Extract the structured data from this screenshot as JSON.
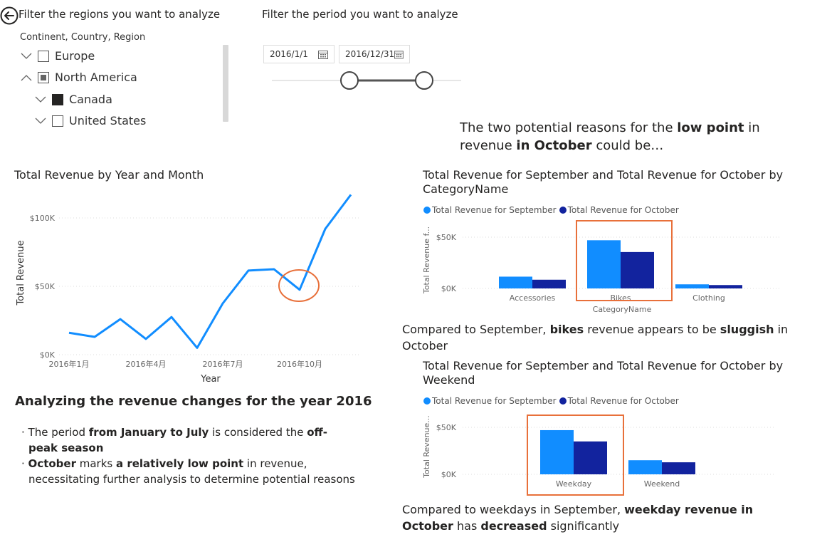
{
  "filters": {
    "region_heading": "Filter the regions you want to analyze",
    "period_heading": "Filter the period you want to analyze",
    "tree_title": "Continent, Country, Region",
    "tree_items": [
      {
        "label": "Europe",
        "state": "unchecked",
        "expanded": false
      },
      {
        "label": "North America",
        "state": "partial",
        "expanded": true
      },
      {
        "label": "Canada",
        "state": "checked",
        "expanded": false
      },
      {
        "label": "United States",
        "state": "unchecked",
        "expanded": false
      }
    ],
    "start_date": "2016/1/1",
    "end_date": "2016/12/31"
  },
  "insight": {
    "reasons_intro_pre": "The two potential reasons for the ",
    "reasons_intro_bold1": "low point",
    "reasons_intro_mid": " in revenue ",
    "reasons_intro_bold2": "in October",
    "reasons_intro_post": " could be…"
  },
  "line_chart": {
    "title": "Total Revenue by Year and Month",
    "xlabel": "Year",
    "ylabel": "Total Revenue"
  },
  "analysis": {
    "heading": "Analyzing the revenue changes for the year 2016",
    "bullet1_pre": "The period ",
    "bullet1_bold": "from January to July",
    "bullet1_mid": " is considered the ",
    "bullet1_bold2": "off-peak season",
    "bullet2_bold": "October",
    "bullet2_mid": " marks ",
    "bullet2_bold2": "a relatively low point",
    "bullet2_post": " in revenue, necessitating further analysis to determine potential reasons"
  },
  "bar_chart_category": {
    "title": "Total Revenue for September and Total Revenue for October by CategoryName",
    "xlabel": "CategoryName",
    "ylabel": "Total Revenue f...",
    "note_pre": "Compared to September, ",
    "note_bold1": "bikes",
    "note_mid": " revenue appears to be ",
    "note_bold2": "sluggish",
    "note_post": " in October"
  },
  "bar_chart_weekend": {
    "title": "Total Revenue for September and Total Revenue for October by Weekend",
    "ylabel": "Total Revenue...",
    "note_pre": "Compared to weekdays in September, ",
    "note_bold1": "weekday revenue in October",
    "note_mid": " has ",
    "note_bold2": "decreased",
    "note_post": " significantly"
  },
  "legend": {
    "september": "Total Revenue for September",
    "october": "Total Revenue for October"
  },
  "colors": {
    "line": "#118dff",
    "september": "#118dff",
    "october": "#12239e",
    "highlight": "#e8703a"
  },
  "icons": {
    "back": "back-arrow-icon",
    "calendar": "calendar-icon",
    "chevron": "chevron-icon"
  },
  "chart_data": [
    {
      "type": "line",
      "title": "Total Revenue by Year and Month",
      "xlabel": "Year",
      "ylabel": "Total Revenue",
      "x_ticks": [
        "2016年1月",
        "2016年4月",
        "2016年7月",
        "2016年10月"
      ],
      "y_ticks": [
        "$0K",
        "$50K",
        "$100K"
      ],
      "ylim": [
        0,
        120000
      ],
      "series": [
        {
          "x": [
            "2016-01",
            "2016-02",
            "2016-03",
            "2016-04",
            "2016-05",
            "2016-06",
            "2016-07",
            "2016-08",
            "2016-09",
            "2016-10",
            "2016-11",
            "2016-12"
          ],
          "values": [
            16000,
            13000,
            26000,
            11500,
            27500,
            5000,
            37500,
            61500,
            62500,
            47500,
            92000,
            117000
          ]
        }
      ],
      "grid": true
    },
    {
      "type": "bar",
      "title": "Total Revenue for September and Total Revenue for October by CategoryName",
      "xlabel": "CategoryName",
      "ylabel": "Total Revenue f...",
      "categories": [
        "Accessories",
        "Bikes",
        "Clothing"
      ],
      "y_ticks": [
        "$0K",
        "$50K"
      ],
      "ylim": [
        0,
        52000
      ],
      "series": [
        {
          "name": "Total Revenue for September",
          "values": [
            11500,
            47000,
            4000
          ]
        },
        {
          "name": "Total Revenue for October",
          "values": [
            8500,
            35500,
            3300
          ]
        }
      ],
      "legend": "top-left",
      "grid": true
    },
    {
      "type": "bar",
      "title": "Total Revenue for September and Total Revenue for October by Weekend",
      "xlabel": "",
      "ylabel": "Total Revenue...",
      "categories": [
        "Weekday",
        "Weekend"
      ],
      "y_ticks": [
        "$0K",
        "$50K"
      ],
      "ylim": [
        0,
        57000
      ],
      "series": [
        {
          "name": "Total Revenue for September",
          "values": [
            47000,
            15000
          ]
        },
        {
          "name": "Total Revenue for October",
          "values": [
            35000,
            12800
          ]
        }
      ],
      "legend": "top-left",
      "grid": true
    }
  ]
}
